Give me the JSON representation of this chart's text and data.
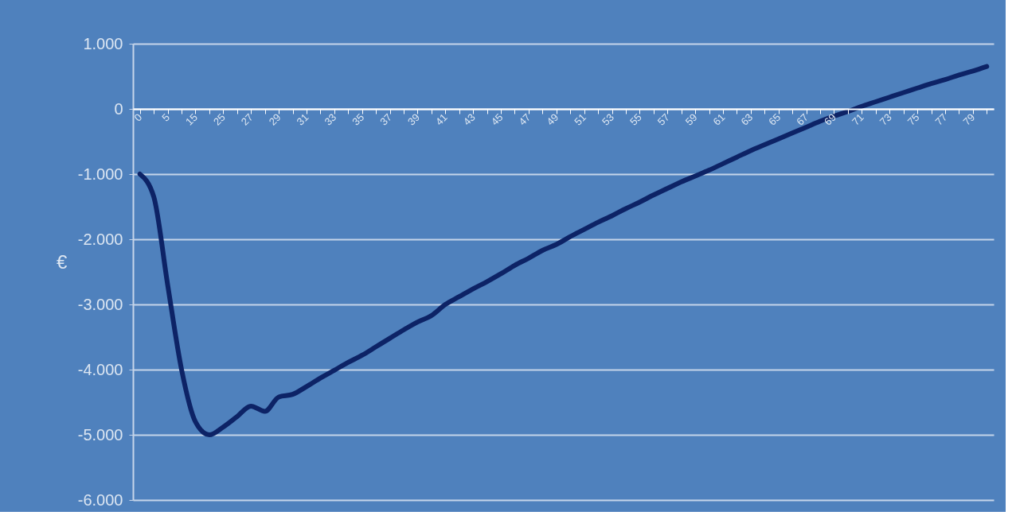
{
  "chart_data": {
    "type": "line",
    "ylabel": "€",
    "categories": [
      "0",
      null,
      "5",
      null,
      "15",
      null,
      "25",
      null,
      "27",
      null,
      "29",
      null,
      "31",
      null,
      "33",
      null,
      "35",
      null,
      "37",
      null,
      "39",
      null,
      "41",
      null,
      "43",
      null,
      "45",
      null,
      "47",
      null,
      "49",
      null,
      "51",
      null,
      "53",
      null,
      "55",
      null,
      "57",
      null,
      "59",
      null,
      "61",
      null,
      "63",
      null,
      "65",
      null,
      "67",
      null,
      "69",
      null,
      "71",
      null,
      "73",
      null,
      "75",
      null,
      "77",
      null,
      "79",
      null
    ],
    "series": [
      {
        "color": "#0d2366",
        "values": [
          -1000,
          -1350,
          -2700,
          -4000,
          -4800,
          -5000,
          -4880,
          -4720,
          -4560,
          -4640,
          -4420,
          -4380,
          -4260,
          -4130,
          -4010,
          -3890,
          -3780,
          -3650,
          -3520,
          -3390,
          -3270,
          -3170,
          -3000,
          -2880,
          -2760,
          -2650,
          -2530,
          -2400,
          -2290,
          -2170,
          -2080,
          -1960,
          -1850,
          -1740,
          -1640,
          -1530,
          -1430,
          -1320,
          -1220,
          -1120,
          -1030,
          -940,
          -840,
          -740,
          -640,
          -550,
          -460,
          -370,
          -280,
          -190,
          -110,
          -40,
          40,
          110,
          180,
          250,
          320,
          390,
          450,
          520,
          580,
          650
        ]
      }
    ],
    "ylim": [
      -6000,
      1000
    ],
    "yticks": [
      {
        "value": -6000,
        "label": "-6.000"
      },
      {
        "value": -5000,
        "label": "-5.000"
      },
      {
        "value": -4000,
        "label": "-4.000"
      },
      {
        "value": -3000,
        "label": "-3.000"
      },
      {
        "value": -2000,
        "label": "-2.000"
      },
      {
        "value": -1000,
        "label": "-1.000"
      },
      {
        "value": 0,
        "label": "0"
      },
      {
        "value": 1000,
        "label": "1.000"
      }
    ],
    "grid": "y",
    "marker": "none",
    "line_style": "solid"
  }
}
